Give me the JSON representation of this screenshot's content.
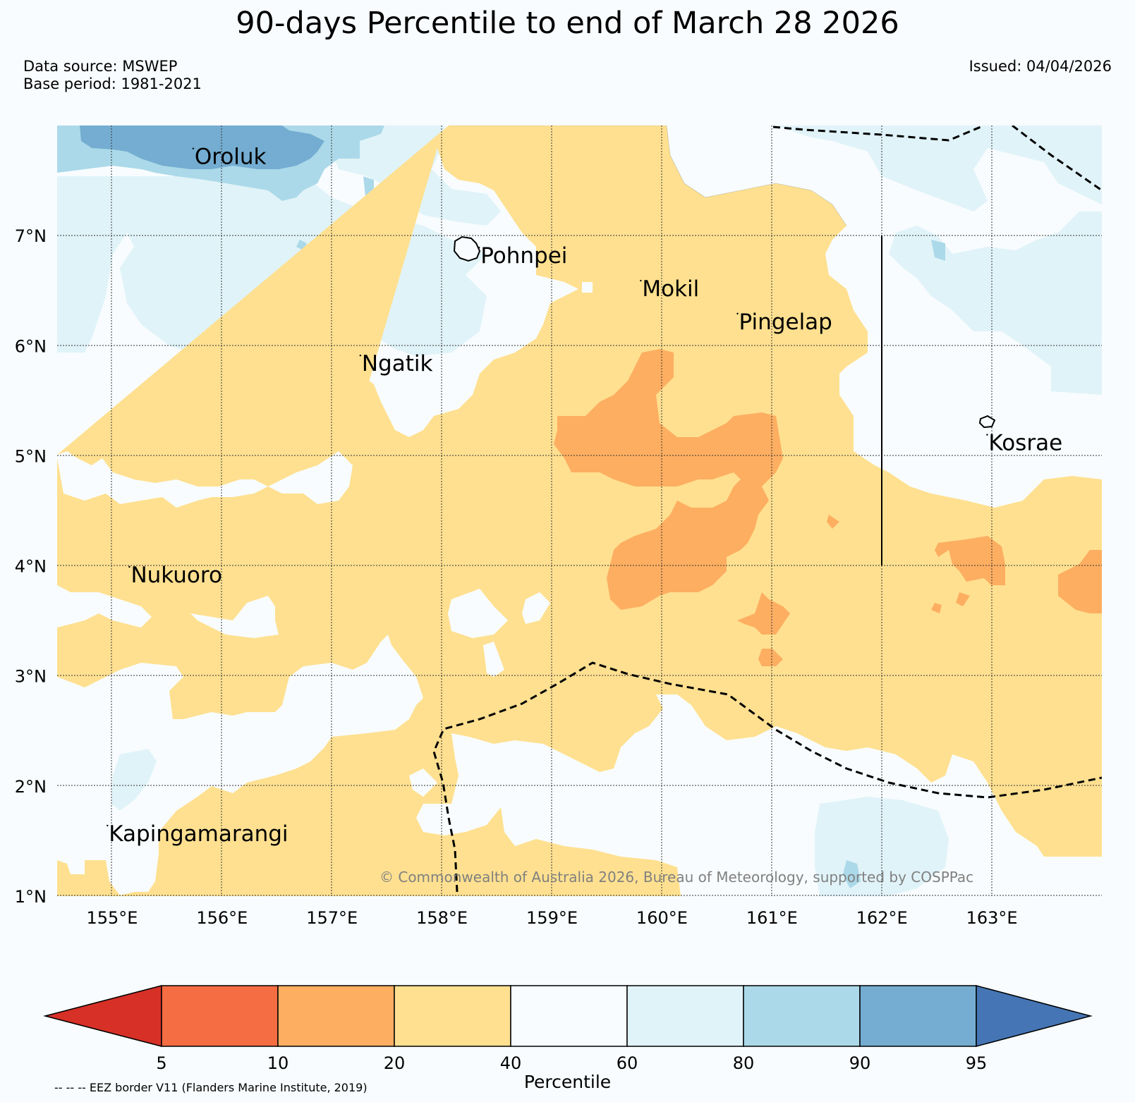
{
  "title": "90-days Percentile to end of March 28 2026",
  "data_source": "Data source: MSWEP",
  "base_period": "Base period: 1981-2021",
  "issued": "Issued: 04/04/2026",
  "credit": "© Commonwealth of Australia 2026, Bureau of Meteorology, supported by COSPPac",
  "eez_note": "-- -- -- EEZ border V11 (Flanders Marine Institute, 2019)",
  "colorbar": {
    "label": "Percentile",
    "ticks": [
      "5",
      "10",
      "20",
      "40",
      "60",
      "80",
      "90",
      "95"
    ],
    "colors": [
      "#d73027",
      "#f46d43",
      "#fdae61",
      "#fee090",
      "#f8fcfe",
      "#e0f3f8",
      "#abd9e9",
      "#74add1",
      "#4575b4"
    ]
  },
  "map": {
    "lon_labels": [
      "155°E",
      "156°E",
      "157°E",
      "158°E",
      "159°E",
      "160°E",
      "161°E",
      "162°E",
      "163°E"
    ],
    "lat_labels": [
      "7°N",
      "6°N",
      "5°N",
      "4°N",
      "3°N",
      "2°N",
      "1°N"
    ],
    "lon_range": [
      154.5,
      164.0
    ],
    "lat_range": [
      1.0,
      8.0
    ],
    "places": [
      {
        "name": "Oroluk",
        "lon": 155.75,
        "lat": 7.65
      },
      {
        "name": "Pohnpei",
        "lon": 158.35,
        "lat": 6.75
      },
      {
        "name": "Mokil",
        "lon": 159.82,
        "lat": 6.45
      },
      {
        "name": "Pingelap",
        "lon": 160.7,
        "lat": 6.15
      },
      {
        "name": "Ngatik",
        "lon": 157.27,
        "lat": 5.77
      },
      {
        "name": "Kosrae",
        "lon": 162.97,
        "lat": 5.05
      },
      {
        "name": "Nukuoro",
        "lon": 155.17,
        "lat": 3.85
      },
      {
        "name": "Kapingamarangi",
        "lon": 154.97,
        "lat": 1.5
      }
    ]
  }
}
